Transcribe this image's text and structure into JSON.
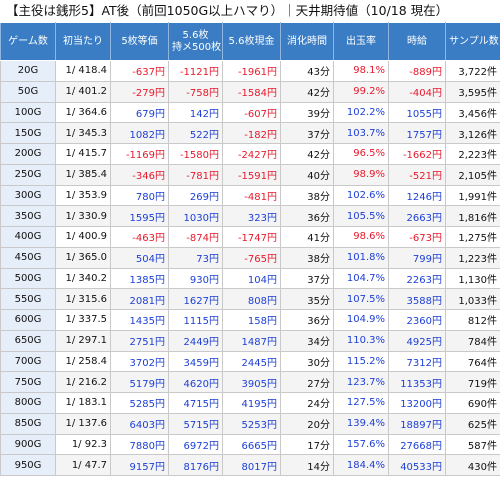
{
  "title": "【主役は銭形5】AT後（前回1050G以上ハマり）｜天井期待値（10/18 現在）",
  "headers": [
    "ゲーム数",
    "初当たり",
    "5枚等価",
    "5.6枚\n持メ500枚",
    "5.6枚現金",
    "消化時間",
    "出玉率",
    "時給",
    "サンプル数"
  ],
  "rows": [
    {
      "game": "20G",
      "hit": "1/ 418.4",
      "eq5": "-637円",
      "m56": "-1121円",
      "c56": "-1961円",
      "time": "43分",
      "rate": "98.1%",
      "wage": "-889円",
      "samples": "3,722件"
    },
    {
      "game": "50G",
      "hit": "1/ 401.2",
      "eq5": "-279円",
      "m56": "-758円",
      "c56": "-1584円",
      "time": "42分",
      "rate": "99.2%",
      "wage": "-404円",
      "samples": "3,595件"
    },
    {
      "game": "100G",
      "hit": "1/ 364.6",
      "eq5": "679円",
      "m56": "142円",
      "c56": "-607円",
      "time": "39分",
      "rate": "102.2%",
      "wage": "1055円",
      "samples": "3,456件"
    },
    {
      "game": "150G",
      "hit": "1/ 345.3",
      "eq5": "1082円",
      "m56": "522円",
      "c56": "-182円",
      "time": "37分",
      "rate": "103.7%",
      "wage": "1757円",
      "samples": "3,126件"
    },
    {
      "game": "200G",
      "hit": "1/ 415.7",
      "eq5": "-1169円",
      "m56": "-1580円",
      "c56": "-2427円",
      "time": "42分",
      "rate": "96.5%",
      "wage": "-1662円",
      "samples": "2,223件"
    },
    {
      "game": "250G",
      "hit": "1/ 385.4",
      "eq5": "-346円",
      "m56": "-781円",
      "c56": "-1591円",
      "time": "40分",
      "rate": "98.9%",
      "wage": "-521円",
      "samples": "2,105件"
    },
    {
      "game": "300G",
      "hit": "1/ 353.9",
      "eq5": "780円",
      "m56": "269円",
      "c56": "-481円",
      "time": "38分",
      "rate": "102.6%",
      "wage": "1246円",
      "samples": "1,991件"
    },
    {
      "game": "350G",
      "hit": "1/ 330.9",
      "eq5": "1595円",
      "m56": "1030円",
      "c56": "323円",
      "time": "36分",
      "rate": "105.5%",
      "wage": "2663円",
      "samples": "1,816件"
    },
    {
      "game": "400G",
      "hit": "1/ 400.9",
      "eq5": "-463円",
      "m56": "-874円",
      "c56": "-1747円",
      "time": "41分",
      "rate": "98.6%",
      "wage": "-673円",
      "samples": "1,275件"
    },
    {
      "game": "450G",
      "hit": "1/ 365.0",
      "eq5": "504円",
      "m56": "73円",
      "c56": "-765円",
      "time": "38分",
      "rate": "101.8%",
      "wage": "799円",
      "samples": "1,223件"
    },
    {
      "game": "500G",
      "hit": "1/ 340.2",
      "eq5": "1385円",
      "m56": "930円",
      "c56": "104円",
      "time": "37分",
      "rate": "104.7%",
      "wage": "2263円",
      "samples": "1,130件"
    },
    {
      "game": "550G",
      "hit": "1/ 315.6",
      "eq5": "2081円",
      "m56": "1627円",
      "c56": "808円",
      "time": "35分",
      "rate": "107.5%",
      "wage": "3588円",
      "samples": "1,033件"
    },
    {
      "game": "600G",
      "hit": "1/ 337.5",
      "eq5": "1435円",
      "m56": "1115円",
      "c56": "158円",
      "time": "36分",
      "rate": "104.9%",
      "wage": "2360円",
      "samples": "812件"
    },
    {
      "game": "650G",
      "hit": "1/ 297.1",
      "eq5": "2751円",
      "m56": "2449円",
      "c56": "1487円",
      "time": "34分",
      "rate": "110.3%",
      "wage": "4925円",
      "samples": "784件"
    },
    {
      "game": "700G",
      "hit": "1/ 258.4",
      "eq5": "3702円",
      "m56": "3459円",
      "c56": "2445円",
      "time": "30分",
      "rate": "115.2%",
      "wage": "7312円",
      "samples": "764件"
    },
    {
      "game": "750G",
      "hit": "1/ 216.2",
      "eq5": "5179円",
      "m56": "4620円",
      "c56": "3905円",
      "time": "27分",
      "rate": "123.7%",
      "wage": "11353円",
      "samples": "719件"
    },
    {
      "game": "800G",
      "hit": "1/ 183.1",
      "eq5": "5285円",
      "m56": "4715円",
      "c56": "4195円",
      "time": "24分",
      "rate": "127.5%",
      "wage": "13200円",
      "samples": "690件"
    },
    {
      "game": "850G",
      "hit": "1/ 137.6",
      "eq5": "6403円",
      "m56": "5715円",
      "c56": "5253円",
      "time": "20分",
      "rate": "139.4%",
      "wage": "18897円",
      "samples": "625件"
    },
    {
      "game": "900G",
      "hit": "1/ 92.3",
      "eq5": "7880円",
      "m56": "6972円",
      "c56": "6665円",
      "time": "17分",
      "rate": "157.6%",
      "wage": "27668円",
      "samples": "587件"
    },
    {
      "game": "950G",
      "hit": "1/ 47.7",
      "eq5": "9157円",
      "m56": "8176円",
      "c56": "8017円",
      "time": "14分",
      "rate": "184.4%",
      "wage": "40533円",
      "samples": "430件"
    }
  ]
}
